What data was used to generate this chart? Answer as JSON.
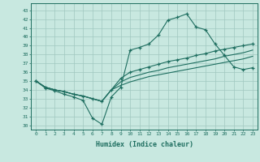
{
  "xlabel": "Humidex (Indice chaleur)",
  "xlim": [
    -0.5,
    23.5
  ],
  "ylim": [
    29.5,
    43.8
  ],
  "yticks": [
    30,
    31,
    32,
    33,
    34,
    35,
    36,
    37,
    38,
    39,
    40,
    41,
    42,
    43
  ],
  "xticks": [
    0,
    1,
    2,
    3,
    4,
    5,
    6,
    7,
    8,
    9,
    10,
    11,
    12,
    13,
    14,
    15,
    16,
    17,
    18,
    19,
    20,
    21,
    22,
    23
  ],
  "bg_color": "#c8e8e0",
  "grid_color": "#a0c8c0",
  "line_color": "#1e6e60",
  "lines": [
    {
      "y": [
        35.0,
        34.2,
        33.9,
        33.5,
        33.2,
        32.8,
        30.8,
        30.1,
        33.2,
        34.3,
        38.5,
        38.8,
        39.2,
        40.2,
        41.9,
        42.2,
        42.6,
        41.1,
        40.8,
        39.2,
        37.9,
        36.6,
        36.3,
        36.5
      ],
      "marker": true
    },
    {
      "y": [
        35.0,
        34.3,
        34.0,
        33.8,
        33.5,
        33.3,
        33.0,
        32.7,
        34.0,
        35.3,
        36.0,
        36.3,
        36.6,
        36.9,
        37.2,
        37.4,
        37.6,
        37.9,
        38.1,
        38.4,
        38.6,
        38.8,
        39.0,
        39.2
      ],
      "marker": true
    },
    {
      "y": [
        35.0,
        34.3,
        34.0,
        33.8,
        33.5,
        33.3,
        33.0,
        32.7,
        34.0,
        34.9,
        35.4,
        35.7,
        36.0,
        36.2,
        36.5,
        36.7,
        36.9,
        37.1,
        37.3,
        37.5,
        37.8,
        38.0,
        38.2,
        38.5
      ],
      "marker": false
    },
    {
      "y": [
        35.0,
        34.3,
        34.0,
        33.8,
        33.5,
        33.3,
        33.0,
        32.7,
        34.0,
        34.5,
        34.9,
        35.2,
        35.5,
        35.7,
        35.9,
        36.1,
        36.3,
        36.5,
        36.7,
        36.9,
        37.1,
        37.3,
        37.5,
        37.8
      ],
      "marker": false
    }
  ]
}
